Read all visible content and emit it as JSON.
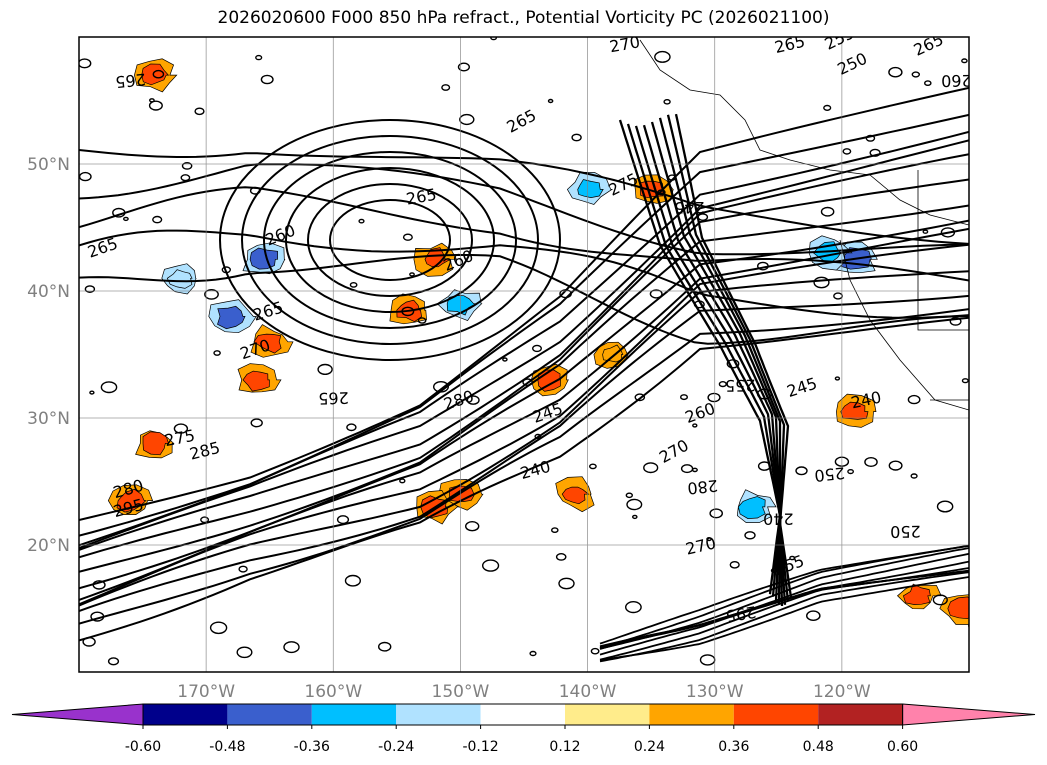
{
  "title": "2026020600 F000 850 hPa refract., Potential Vorticity PC (2026021100)",
  "chart_data": {
    "type": "map_contour_fill",
    "title": "2026020600 F000 850 hPa refract., Potential Vorticity PC (2026021100)",
    "lat_ticks": [
      "50°N",
      "40°N",
      "30°N",
      "20°N"
    ],
    "lon_ticks": [
      "170°W",
      "160°W",
      "150°W",
      "140°W",
      "130°W",
      "120°W"
    ],
    "lat_values": [
      50,
      40,
      30,
      20
    ],
    "lon_values": [
      -170,
      -160,
      -150,
      -140,
      -130,
      -120
    ],
    "lat_range": [
      10,
      60
    ],
    "lon_range": [
      -180,
      -110
    ],
    "grid": true,
    "colorbar": {
      "orientation": "horizontal",
      "extend": "both",
      "ticks": [
        "-0.60",
        "-0.48",
        "-0.36",
        "-0.24",
        "-0.12",
        "0.12",
        "0.24",
        "0.36",
        "0.48",
        "0.60"
      ],
      "tick_values": [
        -0.6,
        -0.48,
        -0.36,
        -0.24,
        -0.12,
        0.12,
        0.24,
        0.36,
        0.48,
        0.6
      ],
      "colors": [
        "#9932cc",
        "#00008b",
        "#3a5fcd",
        "#00bfff",
        "#b0e2ff",
        "#ffffff",
        "#ffec8b",
        "#ffa500",
        "#ff4500",
        "#b22222",
        "#ff82ab"
      ]
    },
    "contour_labels": [
      "265",
      "260",
      "265",
      "270",
      "265",
      "275",
      "280",
      "285",
      "290",
      "295",
      "245",
      "240",
      "250",
      "255",
      "260",
      "270",
      "275",
      "280",
      "285",
      "265",
      "260",
      "250",
      "240",
      "245",
      "250",
      "255",
      "265",
      "295",
      "285",
      "270",
      "260"
    ],
    "sample_contour_labels": [
      {
        "text": "265",
        "lon": -145,
        "lat": 53
      },
      {
        "text": "260",
        "lon": -164,
        "lat": 44
      },
      {
        "text": "265",
        "lon": -165,
        "lat": 38
      },
      {
        "text": "270",
        "lon": -166,
        "lat": 35
      },
      {
        "text": "265",
        "lon": -160,
        "lat": 32
      },
      {
        "text": "275",
        "lon": -172,
        "lat": 28
      },
      {
        "text": "285",
        "lon": -170,
        "lat": 27
      },
      {
        "text": "280",
        "lon": -176,
        "lat": 24
      },
      {
        "text": "295",
        "lon": -176,
        "lat": 22.5
      },
      {
        "text": "280",
        "lon": -150,
        "lat": 31
      },
      {
        "text": "245",
        "lon": -143,
        "lat": 30
      },
      {
        "text": "240",
        "lon": -144,
        "lat": 25.5
      },
      {
        "text": "260",
        "lon": -150,
        "lat": 42
      },
      {
        "text": "265",
        "lon": -153,
        "lat": 47
      },
      {
        "text": "275",
        "lon": -137,
        "lat": 48
      },
      {
        "text": "245",
        "lon": -132,
        "lat": 47
      },
      {
        "text": "255",
        "lon": -128,
        "lat": 33
      },
      {
        "text": "260",
        "lon": -131,
        "lat": 30
      },
      {
        "text": "270",
        "lon": -133,
        "lat": 27
      },
      {
        "text": "280",
        "lon": -131,
        "lat": 25
      },
      {
        "text": "240",
        "lon": -125,
        "lat": 22.5
      },
      {
        "text": "250",
        "lon": -121,
        "lat": 26
      },
      {
        "text": "250",
        "lon": -115,
        "lat": 21.5
      },
      {
        "text": "270",
        "lon": -131,
        "lat": 19.5
      },
      {
        "text": "255",
        "lon": -124,
        "lat": 18
      },
      {
        "text": "245",
        "lon": -123,
        "lat": 32
      },
      {
        "text": "240",
        "lon": -118,
        "lat": 31
      },
      {
        "text": "265",
        "lon": -113,
        "lat": 59
      },
      {
        "text": "260",
        "lon": -111,
        "lat": 57
      },
      {
        "text": "250",
        "lon": -119,
        "lat": 57.5
      },
      {
        "text": "255",
        "lon": -120,
        "lat": 59.5
      },
      {
        "text": "265",
        "lon": -124,
        "lat": 59
      },
      {
        "text": "270",
        "lon": -137,
        "lat": 59
      },
      {
        "text": "265",
        "lon": -176,
        "lat": 57
      },
      {
        "text": "265",
        "lon": -178,
        "lat": 43
      },
      {
        "text": "265",
        "lon": -109,
        "lat": 14
      },
      {
        "text": "295",
        "lon": -128,
        "lat": 15
      }
    ],
    "fill_blobs": [
      {
        "lon": -119,
        "lat": 42.5,
        "value": -0.48
      },
      {
        "lon": -121,
        "lat": 43,
        "value": -0.36
      },
      {
        "lon": -165.5,
        "lat": 42.5,
        "value": -0.48
      },
      {
        "lon": -168,
        "lat": 38,
        "value": -0.48
      },
      {
        "lon": -140,
        "lat": 48,
        "value": -0.36
      },
      {
        "lon": -150,
        "lat": 39,
        "value": -0.36
      },
      {
        "lon": -127,
        "lat": 23,
        "value": -0.36
      },
      {
        "lon": -172,
        "lat": 41,
        "value": -0.24
      },
      {
        "lon": -135,
        "lat": 48,
        "value": 0.36
      },
      {
        "lon": -152,
        "lat": 42.5,
        "value": 0.36
      },
      {
        "lon": -154,
        "lat": 38.5,
        "value": 0.36
      },
      {
        "lon": -174,
        "lat": 28,
        "value": 0.36
      },
      {
        "lon": -176,
        "lat": 23.5,
        "value": 0.36
      },
      {
        "lon": -166,
        "lat": 33,
        "value": 0.36
      },
      {
        "lon": -165,
        "lat": 36,
        "value": 0.36
      },
      {
        "lon": -150,
        "lat": 24,
        "value": 0.36
      },
      {
        "lon": -152,
        "lat": 23,
        "value": 0.36
      },
      {
        "lon": -141,
        "lat": 24,
        "value": 0.36
      },
      {
        "lon": -119,
        "lat": 30.5,
        "value": 0.36
      },
      {
        "lon": -114,
        "lat": 16,
        "value": 0.36
      },
      {
        "lon": -110.5,
        "lat": 15,
        "value": 0.36
      },
      {
        "lon": -174,
        "lat": 57,
        "value": 0.36
      },
      {
        "lon": -143,
        "lat": 33,
        "value": 0.36
      },
      {
        "lon": -138,
        "lat": 35,
        "value": 0.24
      }
    ]
  }
}
